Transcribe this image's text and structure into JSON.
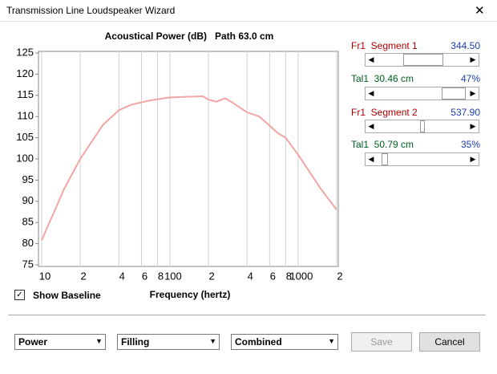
{
  "window": {
    "title": "Transmission Line Loudspeaker Wizard",
    "close": "✕"
  },
  "chart_data": {
    "type": "line",
    "title": "Acoustical Power (dB)   Path 63.0 cm",
    "x_label": "Frequency (hertz)",
    "x": [
      10,
      15,
      20,
      30,
      40,
      50,
      70,
      100,
      150,
      180,
      200,
      230,
      270,
      300,
      400,
      500,
      700,
      800,
      1000,
      1500,
      2000
    ],
    "values": [
      80.8,
      93,
      100,
      108,
      111.5,
      112.8,
      113.8,
      114.5,
      114.7,
      114.8,
      114,
      113.5,
      114.3,
      113.5,
      111,
      110,
      106,
      105,
      101,
      93,
      88
    ],
    "color": "#f2a5a5",
    "log_x": true,
    "xlim": [
      10,
      2000
    ],
    "xticks": [
      10,
      {
        "value": 20,
        "label": "2"
      },
      {
        "value": 40,
        "label": "4"
      },
      {
        "value": 60,
        "label": "6"
      },
      {
        "value": 80,
        "label": "8"
      },
      100,
      {
        "value": 200,
        "label": "2"
      },
      {
        "value": 400,
        "label": "4"
      },
      {
        "value": 600,
        "label": "6"
      },
      {
        "value": 800,
        "label": "8"
      },
      1000,
      {
        "value": 2000,
        "label": "2"
      }
    ],
    "ylim": [
      75,
      125
    ],
    "yticks": [
      75,
      80,
      85,
      90,
      95,
      100,
      105,
      110,
      115,
      120,
      125
    ],
    "xgrid": true
  },
  "controls": {
    "segment1": {
      "label": "Fr1  Segment 1",
      "value": "344.50"
    },
    "tal1a": {
      "label": "Tal1  30.46 cm",
      "value": "47%"
    },
    "segment2": {
      "label": "Fr1  Segment 2",
      "value": "537.90"
    },
    "tal1b": {
      "label": "Tal1  50.79 cm",
      "value": "35%"
    },
    "baseline": "Show Baseline",
    "dropdowns": [
      "Power",
      "Filling",
      "Combined"
    ],
    "save": "Save",
    "cancel": "Cancel"
  }
}
